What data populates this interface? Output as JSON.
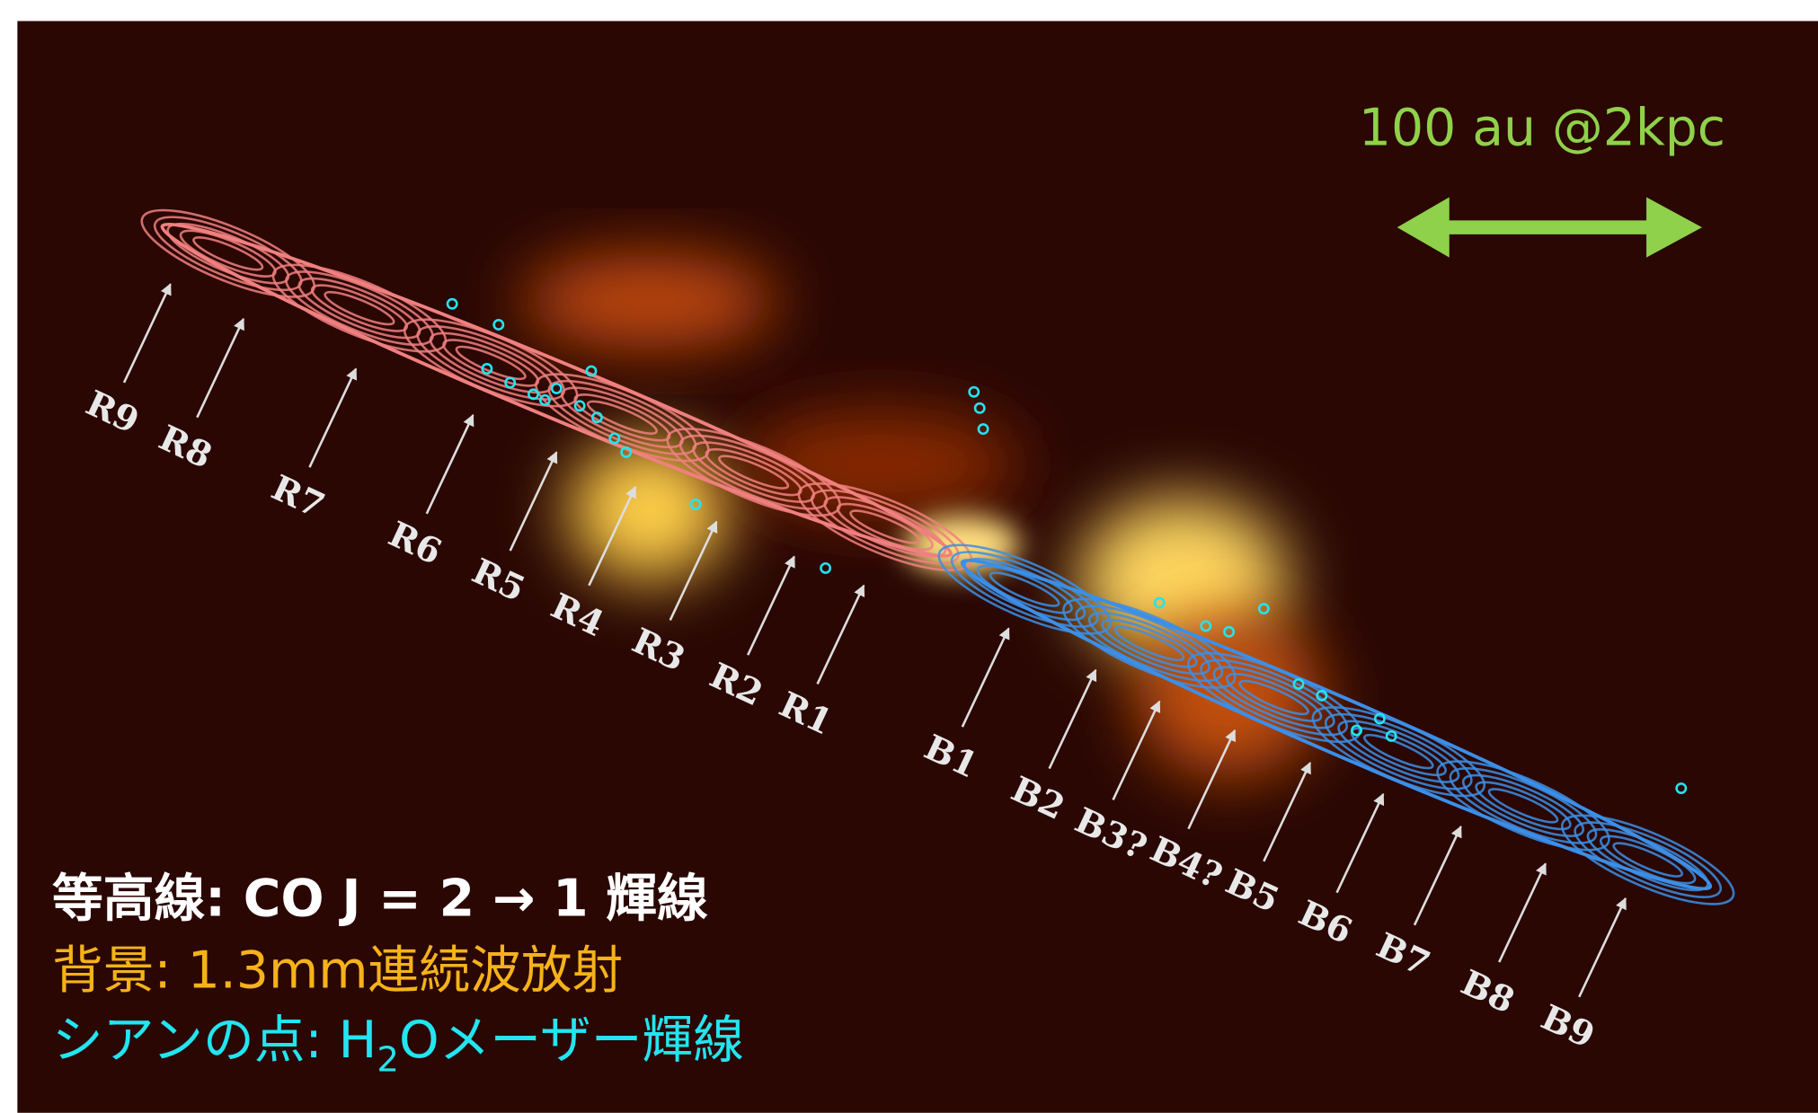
{
  "scale_bar": {
    "label": "100 au @2kpc"
  },
  "red_labels": [
    "R9",
    "R8",
    "R7",
    "R6",
    "R5",
    "R4",
    "R3",
    "R2",
    "R1"
  ],
  "blue_labels": [
    "B1",
    "B2",
    "B3?",
    "B4?",
    "B5",
    "B6",
    "B7",
    "B8",
    "B9"
  ],
  "legend": {
    "contours": "等高線: CO J = 2 → 1 輝線",
    "background": "背景: 1.3mm連続波放射",
    "dots": {
      "prefix": "シアンの点: H",
      "subscript": "2",
      "suffix": "Oメーザー輝線"
    }
  }
}
